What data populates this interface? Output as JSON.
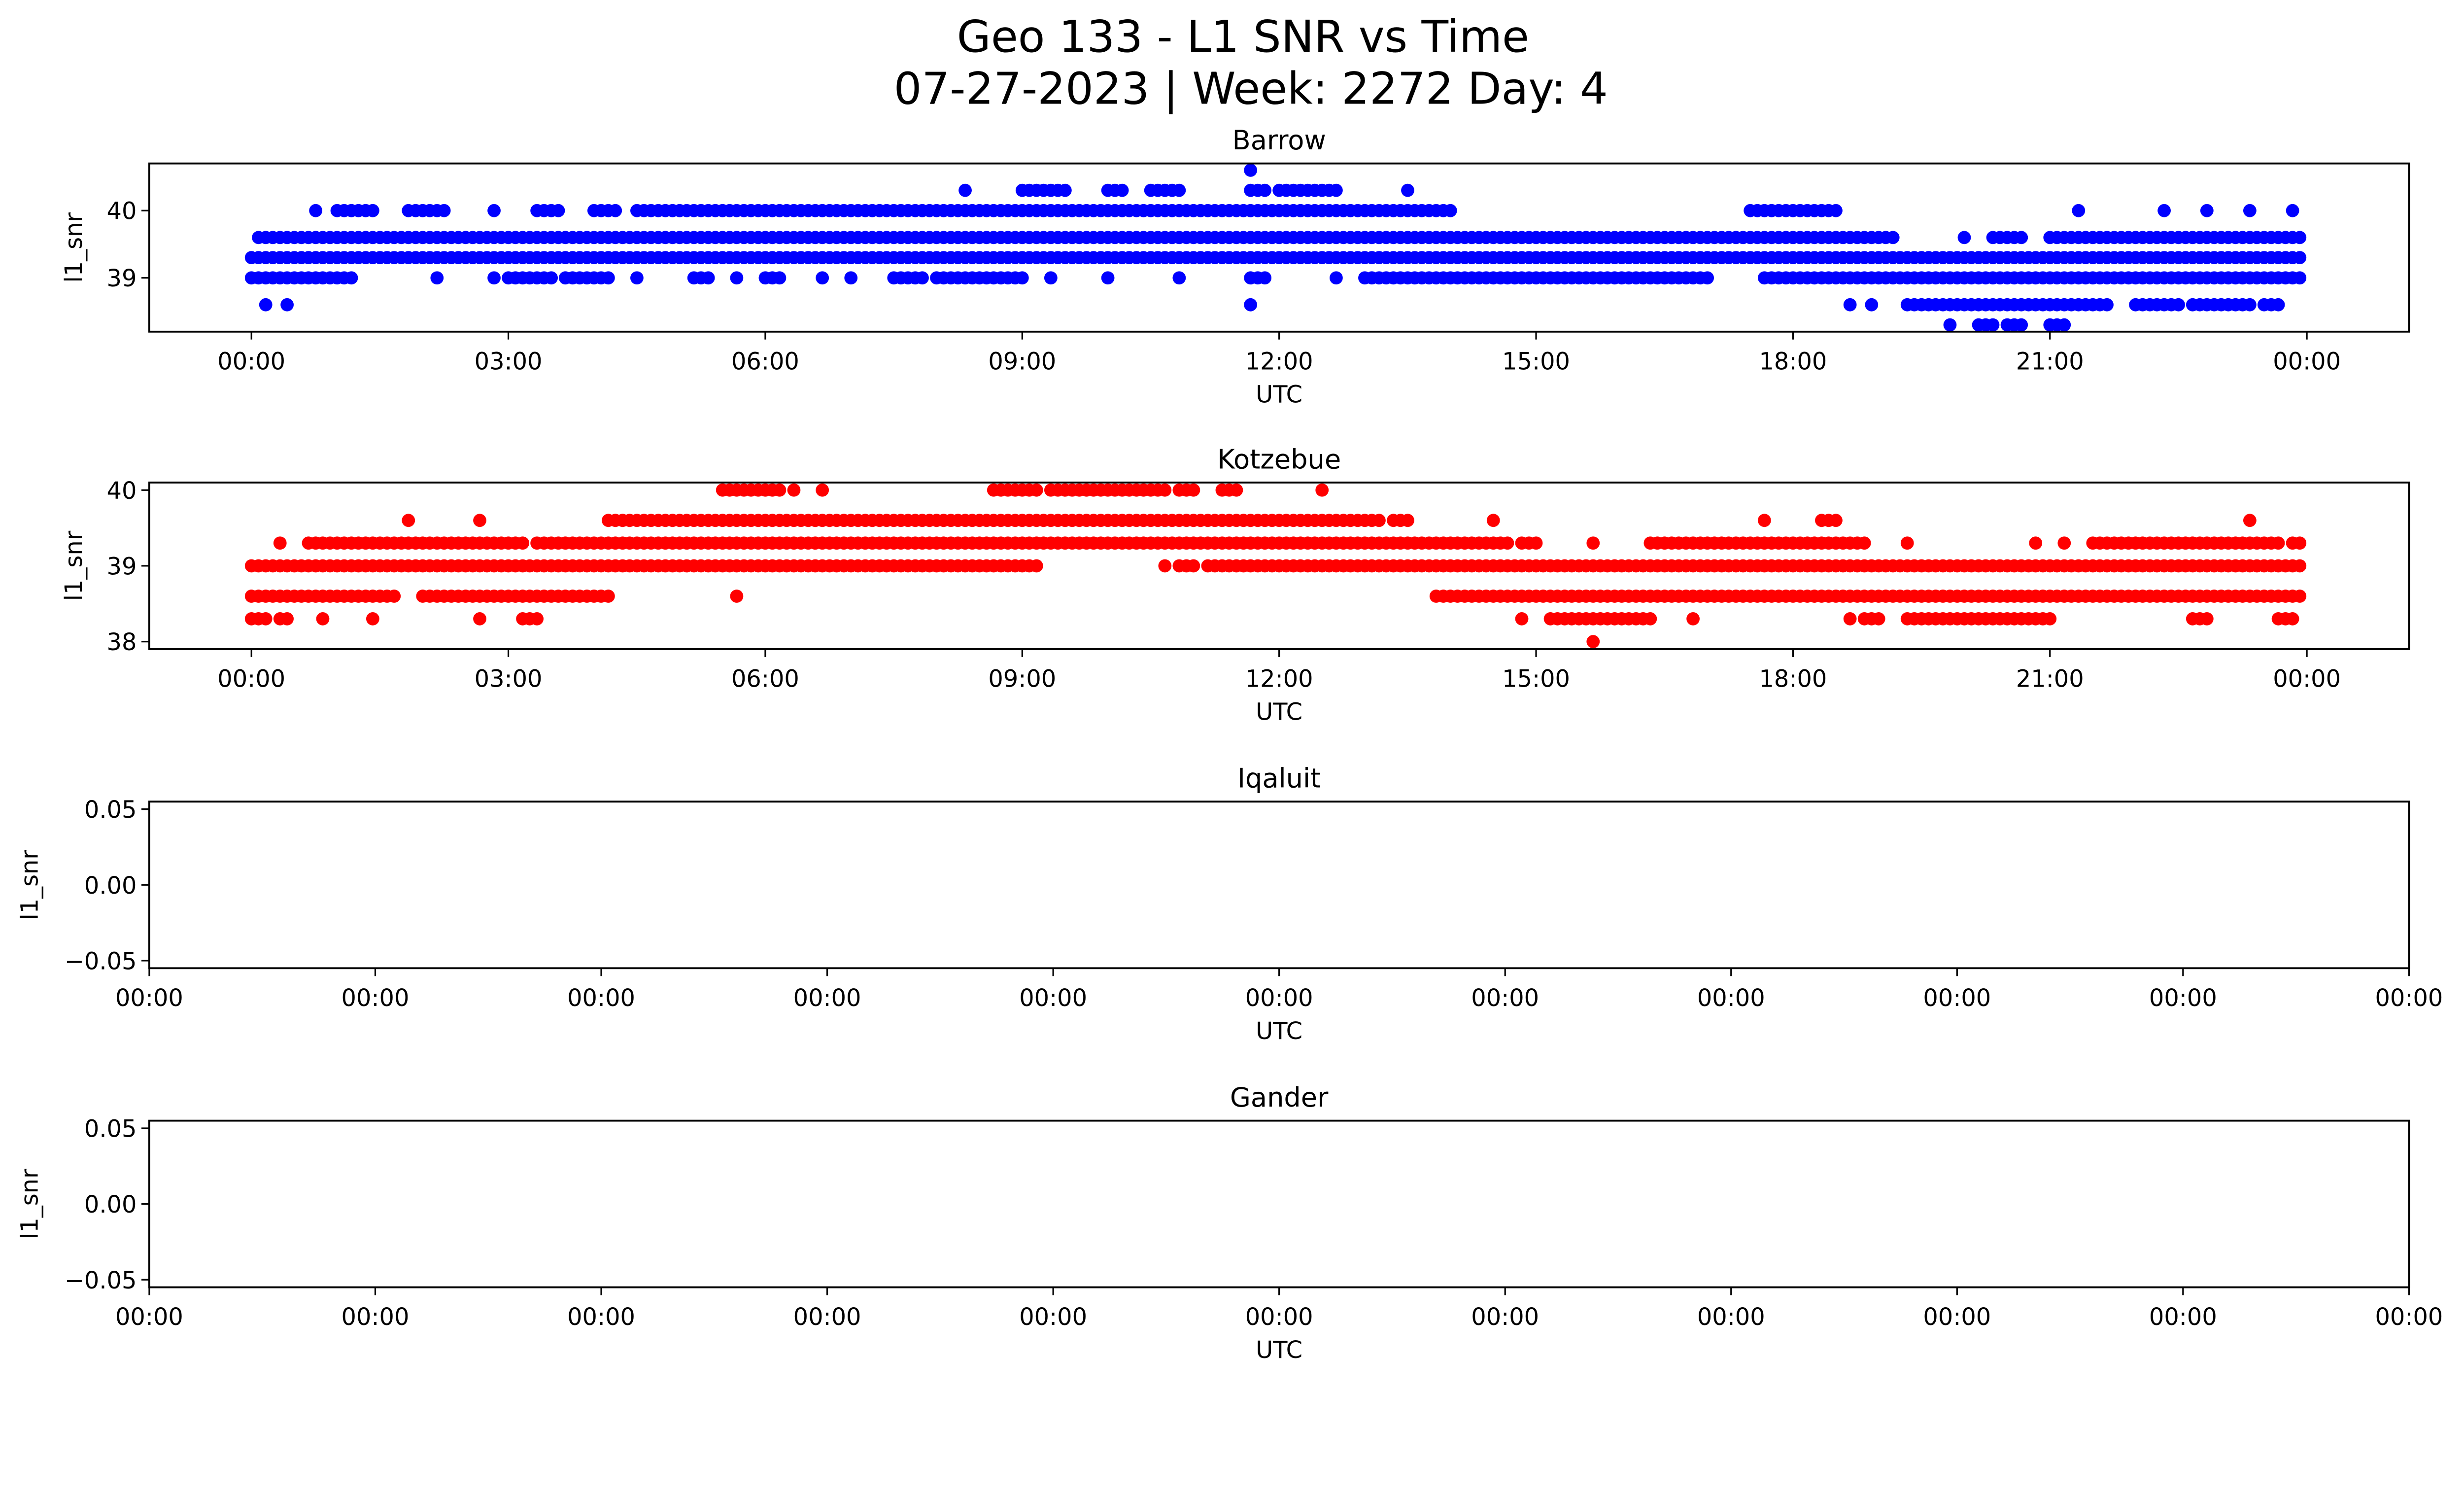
{
  "figure": {
    "title_line1": "Geo 133 - L1 SNR vs Time",
    "title_line2": "07-27-2023 | Week: 2272 Day: 4"
  },
  "chart_data": [
    {
      "type": "scatter",
      "title": "Barrow",
      "xlabel": "UTC",
      "ylabel": "l1_snr",
      "color": "#0000ff",
      "x_range": [
        "00:00",
        "24:00"
      ],
      "x_ticks": [
        "00:00",
        "03:00",
        "06:00",
        "09:00",
        "12:00",
        "15:00",
        "18:00",
        "21:00",
        "00:00"
      ],
      "ylim": [
        38.2,
        40.7
      ],
      "y_ticks": [
        "39",
        "40"
      ],
      "levels": [
        {
          "y": 40.6,
          "segments": [
            [
              "11:40",
              "11:40"
            ]
          ]
        },
        {
          "y": 40.3,
          "segments": [
            [
              "08:20",
              "08:20"
            ],
            [
              "09:00",
              "09:30"
            ],
            [
              "10:00",
              "10:10"
            ],
            [
              "10:30",
              "10:50"
            ],
            [
              "11:40",
              "11:50"
            ],
            [
              "12:00",
              "12:40"
            ],
            [
              "13:30",
              "13:30"
            ]
          ]
        },
        {
          "y": 40.0,
          "segments": [
            [
              "00:45",
              "00:45"
            ],
            [
              "01:00",
              "01:25"
            ],
            [
              "01:50",
              "02:15"
            ],
            [
              "02:50",
              "02:50"
            ],
            [
              "03:20",
              "03:35"
            ],
            [
              "04:00",
              "04:15"
            ],
            [
              "04:30",
              "14:00"
            ],
            [
              "17:30",
              "18:30"
            ],
            [
              "21:20",
              "21:20"
            ],
            [
              "22:20",
              "22:20"
            ],
            [
              "22:50",
              "22:50"
            ],
            [
              "23:20",
              "23:20"
            ],
            [
              "23:50",
              "23:50"
            ]
          ]
        },
        {
          "y": 39.6,
          "segments": [
            [
              "00:05",
              "19:00"
            ],
            [
              "19:05",
              "19:10"
            ],
            [
              "20:00",
              "20:00"
            ],
            [
              "20:20",
              "20:40"
            ],
            [
              "21:00",
              "23:58"
            ]
          ]
        },
        {
          "y": 39.3,
          "segments": [
            [
              "00:00",
              "23:58"
            ]
          ]
        },
        {
          "y": 39.0,
          "segments": [
            [
              "00:00",
              "00:45"
            ],
            [
              "00:50",
              "01:00"
            ],
            [
              "01:05",
              "01:10"
            ],
            [
              "02:10",
              "02:10"
            ],
            [
              "02:50",
              "02:50"
            ],
            [
              "03:00",
              "03:30"
            ],
            [
              "03:40",
              "04:10"
            ],
            [
              "04:30",
              "04:30"
            ],
            [
              "05:10",
              "05:20"
            ],
            [
              "05:40",
              "05:40"
            ],
            [
              "06:00",
              "06:10"
            ],
            [
              "06:40",
              "06:40"
            ],
            [
              "07:00",
              "07:00"
            ],
            [
              "07:30",
              "07:50"
            ],
            [
              "08:00",
              "09:00"
            ],
            [
              "09:20",
              "09:20"
            ],
            [
              "10:00",
              "10:00"
            ],
            [
              "10:50",
              "10:50"
            ],
            [
              "11:40",
              "11:50"
            ],
            [
              "12:40",
              "12:40"
            ],
            [
              "13:00",
              "17:00"
            ],
            [
              "17:40",
              "23:58"
            ]
          ]
        },
        {
          "y": 38.6,
          "segments": [
            [
              "00:10",
              "00:10"
            ],
            [
              "00:25",
              "00:25"
            ],
            [
              "11:40",
              "11:40"
            ],
            [
              "18:40",
              "18:40"
            ],
            [
              "18:55",
              "18:55"
            ],
            [
              "19:20",
              "21:40"
            ],
            [
              "22:00",
              "22:30"
            ],
            [
              "22:40",
              "23:20"
            ],
            [
              "23:30",
              "23:40"
            ]
          ]
        },
        {
          "y": 38.3,
          "segments": [
            [
              "19:50",
              "19:50"
            ],
            [
              "20:10",
              "20:20"
            ],
            [
              "20:30",
              "20:40"
            ],
            [
              "21:00",
              "21:10"
            ]
          ]
        }
      ]
    },
    {
      "type": "scatter",
      "title": "Kotzebue",
      "xlabel": "UTC",
      "ylabel": "l1_snr",
      "color": "#ff0000",
      "x_range": [
        "00:00",
        "24:00"
      ],
      "x_ticks": [
        "00:00",
        "03:00",
        "06:00",
        "09:00",
        "12:00",
        "15:00",
        "18:00",
        "21:00",
        "00:00"
      ],
      "ylim": [
        37.9,
        40.1
      ],
      "y_ticks": [
        "38",
        "39",
        "40"
      ],
      "levels": [
        {
          "y": 40.0,
          "segments": [
            [
              "05:30",
              "06:10"
            ],
            [
              "06:20",
              "06:20"
            ],
            [
              "06:40",
              "06:40"
            ],
            [
              "08:40",
              "09:10"
            ],
            [
              "09:20",
              "10:40"
            ],
            [
              "10:50",
              "11:00"
            ],
            [
              "11:20",
              "11:30"
            ],
            [
              "12:30",
              "12:30"
            ]
          ]
        },
        {
          "y": 39.6,
          "segments": [
            [
              "01:50",
              "01:50"
            ],
            [
              "02:40",
              "02:40"
            ],
            [
              "04:10",
              "13:10"
            ],
            [
              "13:20",
              "13:30"
            ],
            [
              "14:30",
              "14:30"
            ],
            [
              "17:40",
              "17:40"
            ],
            [
              "18:20",
              "18:30"
            ],
            [
              "23:20",
              "23:20"
            ]
          ]
        },
        {
          "y": 39.3,
          "segments": [
            [
              "00:20",
              "00:20"
            ],
            [
              "00:40",
              "03:10"
            ],
            [
              "03:20",
              "14:40"
            ],
            [
              "14:50",
              "15:00"
            ],
            [
              "15:40",
              "15:40"
            ],
            [
              "16:20",
              "18:50"
            ],
            [
              "19:20",
              "19:20"
            ],
            [
              "20:50",
              "20:50"
            ],
            [
              "21:10",
              "21:10"
            ],
            [
              "21:30",
              "23:40"
            ],
            [
              "23:50",
              "23:58"
            ]
          ]
        },
        {
          "y": 39.0,
          "segments": [
            [
              "00:00",
              "09:10"
            ],
            [
              "10:40",
              "10:40"
            ],
            [
              "10:50",
              "11:00"
            ],
            [
              "11:10",
              "23:58"
            ]
          ]
        },
        {
          "y": 38.6,
          "segments": [
            [
              "00:00",
              "01:40"
            ],
            [
              "02:00",
              "04:10"
            ],
            [
              "05:40",
              "05:40"
            ],
            [
              "13:50",
              "23:58"
            ]
          ]
        },
        {
          "y": 38.3,
          "segments": [
            [
              "00:00",
              "00:10"
            ],
            [
              "00:20",
              "00:25"
            ],
            [
              "00:50",
              "00:50"
            ],
            [
              "01:25",
              "01:25"
            ],
            [
              "02:40",
              "02:40"
            ],
            [
              "03:10",
              "03:20"
            ],
            [
              "14:50",
              "14:50"
            ],
            [
              "15:10",
              "16:20"
            ],
            [
              "16:50",
              "16:50"
            ],
            [
              "18:40",
              "18:40"
            ],
            [
              "18:50",
              "19:00"
            ],
            [
              "19:20",
              "21:00"
            ],
            [
              "22:40",
              "22:50"
            ],
            [
              "23:40",
              "23:50"
            ]
          ]
        },
        {
          "y": 38.0,
          "segments": [
            [
              "15:40",
              "15:40"
            ]
          ]
        }
      ]
    },
    {
      "type": "scatter",
      "title": "Iqaluit",
      "xlabel": "UTC",
      "ylabel": "l1_snr",
      "color": "#000000",
      "ylim": [
        -0.055,
        0.055
      ],
      "y_ticks": [
        "0.05",
        "0.00",
        "−0.05"
      ],
      "x_ticks": [
        "00:00",
        "00:00",
        "00:00",
        "00:00",
        "00:00",
        "00:00",
        "00:00",
        "00:00",
        "00:00",
        "00:00",
        "00:00"
      ],
      "levels": []
    },
    {
      "type": "scatter",
      "title": "Gander",
      "xlabel": "UTC",
      "ylabel": "l1_snr",
      "color": "#000000",
      "ylim": [
        -0.055,
        0.055
      ],
      "y_ticks": [
        "0.05",
        "0.00",
        "−0.05"
      ],
      "x_ticks": [
        "00:00",
        "00:00",
        "00:00",
        "00:00",
        "00:00",
        "00:00",
        "00:00",
        "00:00",
        "00:00",
        "00:00",
        "00:00"
      ],
      "levels": []
    }
  ]
}
